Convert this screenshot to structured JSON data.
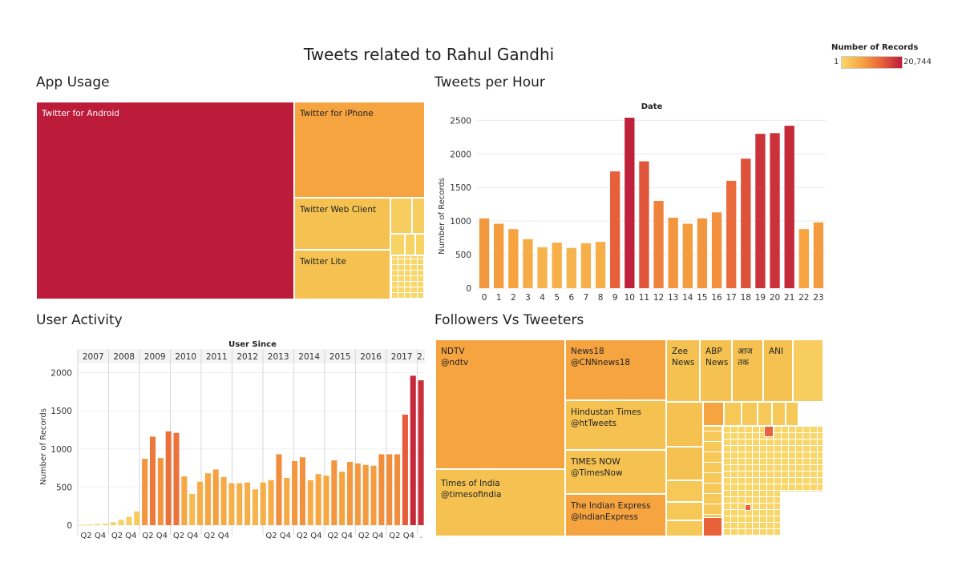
{
  "title": "Tweets related to Rahul Gandhi",
  "legend": {
    "title": "Number of Records",
    "min": "1",
    "max": "20,744"
  },
  "colors": {
    "low": "#f8d66a",
    "mid1": "#f6a440",
    "mid2": "#e8613a",
    "high": "#bc1b3a"
  },
  "sections": {
    "app_usage": "App Usage",
    "tweets_per_hour": "Tweets per Hour",
    "user_activity": "User Activity",
    "followers": "Followers Vs Tweeters"
  },
  "chart_data": [
    {
      "type": "treemap",
      "name": "App Usage",
      "items": [
        {
          "label": "Twitter for Android",
          "value": 20744
        },
        {
          "label": "Twitter for iPhone",
          "value": 5300
        },
        {
          "label": "Twitter Web Client",
          "value": 2900
        },
        {
          "label": "Twitter Lite",
          "value": 2400
        }
      ]
    },
    {
      "type": "bar",
      "name": "Tweets per Hour",
      "xlabel": "Date",
      "ylabel": "Number of Records",
      "ylim": [
        0,
        2600
      ],
      "yticks": [
        0,
        500,
        1000,
        1500,
        2000,
        2500
      ],
      "categories": [
        "0",
        "1",
        "2",
        "3",
        "4",
        "5",
        "6",
        "7",
        "8",
        "9",
        "10",
        "11",
        "12",
        "13",
        "14",
        "15",
        "16",
        "17",
        "18",
        "19",
        "20",
        "21",
        "22",
        "23"
      ],
      "values": [
        1040,
        960,
        880,
        730,
        610,
        680,
        600,
        670,
        690,
        1740,
        2540,
        1890,
        1300,
        1050,
        960,
        1040,
        1130,
        1600,
        1930,
        2300,
        2310,
        2420,
        880,
        980
      ]
    },
    {
      "type": "bar",
      "name": "User Activity",
      "xlabel": "User Since",
      "ylabel": "Number of Records",
      "ylim": [
        0,
        2100
      ],
      "yticks": [
        0,
        500,
        1000,
        1500,
        2000
      ],
      "years": [
        "2007",
        "2008",
        "2009",
        "2010",
        "2011",
        "2012",
        "2013",
        "2014",
        "2015",
        "2016",
        "2017",
        "2."
      ],
      "quarter_labels": [
        "Q2 Q4",
        "Q2 Q4",
        "Q2 Q4",
        "Q2 Q4",
        "Q2 Q4",
        "",
        "Q2 Q4",
        "Q2 Q4",
        "Q2 Q4",
        "Q2 Q4",
        "Q2 Q4",
        "."
      ],
      "values": [
        5,
        10,
        15,
        20,
        40,
        70,
        110,
        180,
        870,
        1160,
        880,
        1230,
        1210,
        640,
        410,
        570,
        680,
        730,
        630,
        550,
        550,
        560,
        470,
        560,
        590,
        930,
        620,
        840,
        890,
        590,
        670,
        650,
        850,
        700,
        830,
        810,
        790,
        780,
        930,
        930,
        930,
        1450,
        1960,
        1900
      ]
    },
    {
      "type": "treemap",
      "name": "Followers Vs Tweeters",
      "items": [
        {
          "label": "NDTV\n@ndtv",
          "value": 5200
        },
        {
          "label": "Times of India\n@timesofindia",
          "value": 3000
        },
        {
          "label": "News18\n@CNNnews18",
          "value": 4600
        },
        {
          "label": "Hindustan Times\n@htTweets",
          "value": 3000
        },
        {
          "label": "TIMES NOW\n@TimesNow",
          "value": 2900
        },
        {
          "label": "The Indian Express\n@IndianExpress",
          "value": 2700
        },
        {
          "label": "Zee\nNews",
          "value": 2600
        },
        {
          "label": "ABP\nNews",
          "value": 2500
        },
        {
          "label": "आज\nतक",
          "value": 2400
        },
        {
          "label": "ANI",
          "value": 2300
        }
      ]
    }
  ]
}
